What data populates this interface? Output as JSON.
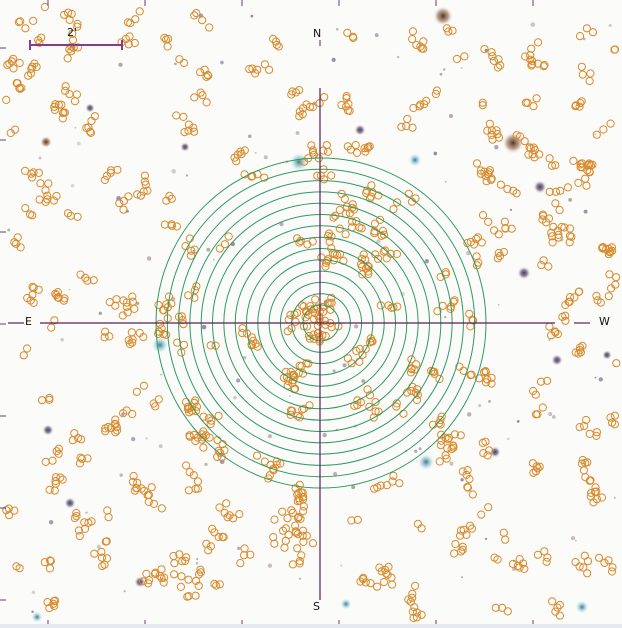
{
  "viewer": {
    "scale_bar_label": "2'",
    "compass": {
      "north": "N",
      "south": "S",
      "east": "E",
      "west": "W"
    }
  },
  "colors": {
    "background": "#fbfbfa",
    "source_circle": "#d98a2b",
    "target_rings": "#2f9a63",
    "crosshair": "#5a1f56",
    "scale_bar": "#8a3a8a",
    "bright_star": "#6b5a7a"
  },
  "overlays": {
    "target_ring_count": 14,
    "catalog_markers": "orange circles",
    "crosshair_ticks": "purple"
  }
}
